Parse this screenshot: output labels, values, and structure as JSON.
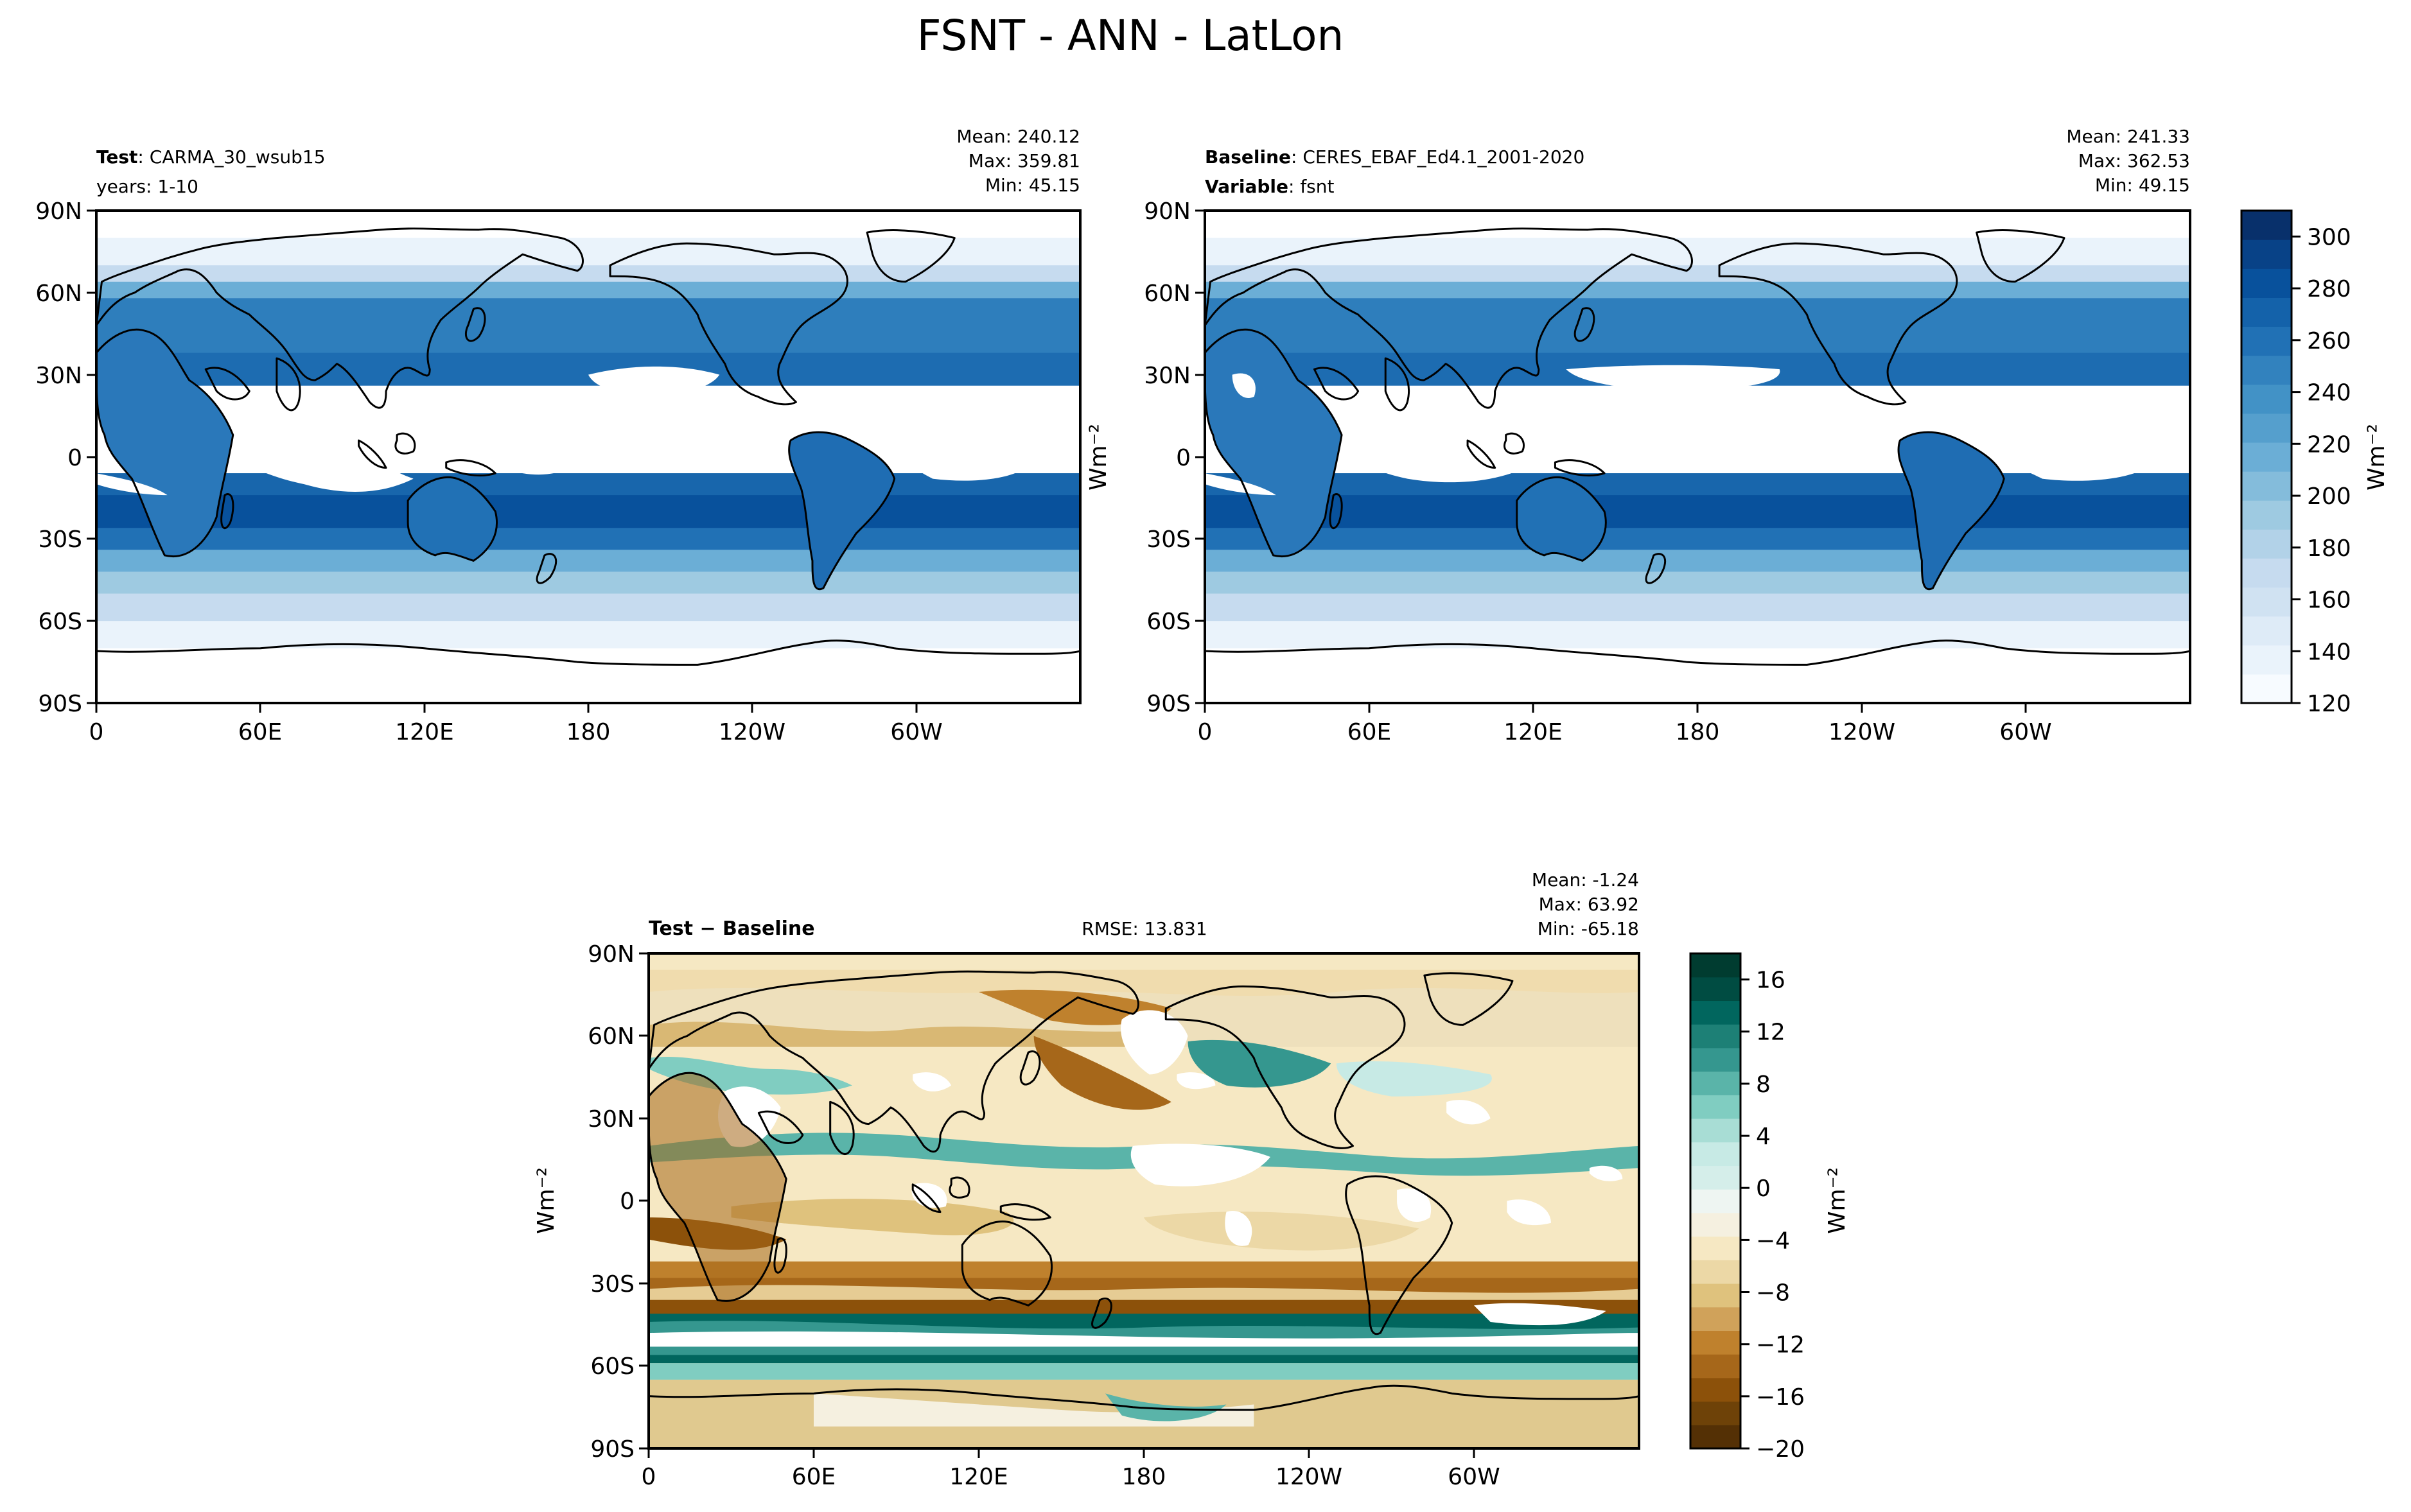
{
  "figure": {
    "title": "FSNT - ANN - LatLon"
  },
  "chart_data": [
    {
      "type": "heatmap",
      "panel": "test",
      "header": {
        "line1_bold": "Test",
        "line1_text": "CARMA_30_wsub15",
        "line2_text": "years: 1-10"
      },
      "stats": {
        "mean": "Mean: 240.12",
        "max": "Max: 359.81",
        "min": "Min: 45.15"
      },
      "xticks": [
        "0",
        "60E",
        "120E",
        "180",
        "120W",
        "60W"
      ],
      "yticks": [
        "90N",
        "60N",
        "30N",
        "0",
        "30S",
        "60S",
        "90S"
      ],
      "xlim": [
        0,
        360
      ],
      "ylim": [
        -90,
        90
      ],
      "colormap": "Blues",
      "value_range": [
        120,
        310
      ]
    },
    {
      "type": "heatmap",
      "panel": "baseline",
      "header": {
        "line1_bold": "Baseline",
        "line1_text": "CERES_EBAF_Ed4.1_2001-2020",
        "line2_bold": "Variable",
        "line2_text": "fsnt"
      },
      "stats": {
        "mean": "Mean: 241.33",
        "max": "Max: 362.53",
        "min": "Min: 49.15"
      },
      "xticks": [
        "0",
        "60E",
        "120E",
        "180",
        "120W",
        "60W"
      ],
      "yticks": [
        "90N",
        "60N",
        "30N",
        "0",
        "30S",
        "60S",
        "90S"
      ],
      "xlim": [
        0,
        360
      ],
      "ylim": [
        -90,
        90
      ],
      "colormap": "Blues",
      "value_range": [
        120,
        310
      ]
    },
    {
      "type": "heatmap",
      "panel": "difference",
      "header": {
        "line1_bold": "Test − Baseline",
        "rmse": "RMSE: 13.831"
      },
      "stats": {
        "mean": "Mean: -1.24",
        "max": "Max: 63.92",
        "min": "Min: -65.18"
      },
      "ylabel": "Wm⁻²",
      "xticks": [
        "0",
        "60E",
        "120E",
        "180",
        "120W",
        "60W"
      ],
      "yticks": [
        "90N",
        "60N",
        "30N",
        "0",
        "30S",
        "60S",
        "90S"
      ],
      "xlim": [
        0,
        360
      ],
      "ylim": [
        -90,
        90
      ],
      "colormap": "BrBG",
      "value_range": [
        -20,
        18
      ]
    }
  ],
  "colorbars": {
    "main": {
      "label": "Wm⁻²",
      "ticks": [
        "300",
        "280",
        "260",
        "240",
        "220",
        "200",
        "180",
        "160",
        "140",
        "120"
      ],
      "tick_values": [
        300,
        280,
        260,
        240,
        220,
        200,
        180,
        160,
        140,
        120
      ],
      "range": [
        120,
        310
      ],
      "colors": [
        "#f7fbff",
        "#eaf3fb",
        "#deebf7",
        "#d0e2f2",
        "#c6dbef",
        "#b2d2e8",
        "#9ecae1",
        "#84bcdb",
        "#6baed6",
        "#559fcd",
        "#4292c6",
        "#3282be",
        "#2171b5",
        "#1462aa",
        "#08519c",
        "#084287",
        "#08306b"
      ]
    },
    "diff": {
      "label": "Wm⁻²",
      "ticks": [
        "16",
        "12",
        "8",
        "4",
        "0",
        "−4",
        "−8",
        "−12",
        "−16",
        "−20"
      ],
      "tick_values": [
        16,
        12,
        8,
        4,
        0,
        -4,
        -8,
        -12,
        -16,
        -20
      ],
      "range": [
        -20,
        18
      ],
      "colors": [
        "#543005",
        "#6e4208",
        "#8c510a",
        "#a6671a",
        "#bf812d",
        "#d0a25a",
        "#dfc27d",
        "#ecd8a6",
        "#f6e8c3",
        "#f5f0e0",
        "#eef5f2",
        "#d5eeea",
        "#c7eae5",
        "#a8ddd5",
        "#80cdc1",
        "#5ab4a9",
        "#35978f",
        "#1d8076",
        "#01665e",
        "#004c42",
        "#003c30"
      ]
    }
  }
}
